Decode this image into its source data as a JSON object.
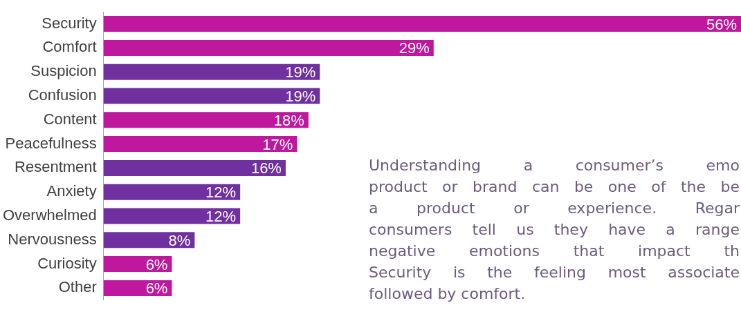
{
  "chart_data": {
    "type": "bar",
    "orientation": "horizontal",
    "categories": [
      "Security",
      "Comfort",
      "Suspicion",
      "Confusion",
      "Content",
      "Peacefulness",
      "Resentment",
      "Anxiety",
      "Overwhelmed",
      "Nervousness",
      "Curiosity",
      "Other"
    ],
    "values": [
      56,
      29,
      19,
      19,
      18,
      17,
      16,
      12,
      12,
      8,
      6,
      6
    ],
    "colors": [
      "#c0179f",
      "#c0179f",
      "#7030a0",
      "#7030a0",
      "#c0179f",
      "#c0179f",
      "#7030a0",
      "#7030a0",
      "#7030a0",
      "#7030a0",
      "#c0179f",
      "#c0179f"
    ],
    "value_labels": [
      "56%",
      "29%",
      "19%",
      "19%",
      "18%",
      "17%",
      "16%",
      "12%",
      "12%",
      "8%",
      "6%",
      "6%"
    ],
    "annotations": [
      "Understanding a consumer’s emo\nproduct or brand can be one of the be\na product or experience. Regar\nconsumers tell us they have a range\nnegative emotions that impact th\nSecurity is the feeling most associate\nfollowed by comfort."
    ],
    "legend": false
  }
}
